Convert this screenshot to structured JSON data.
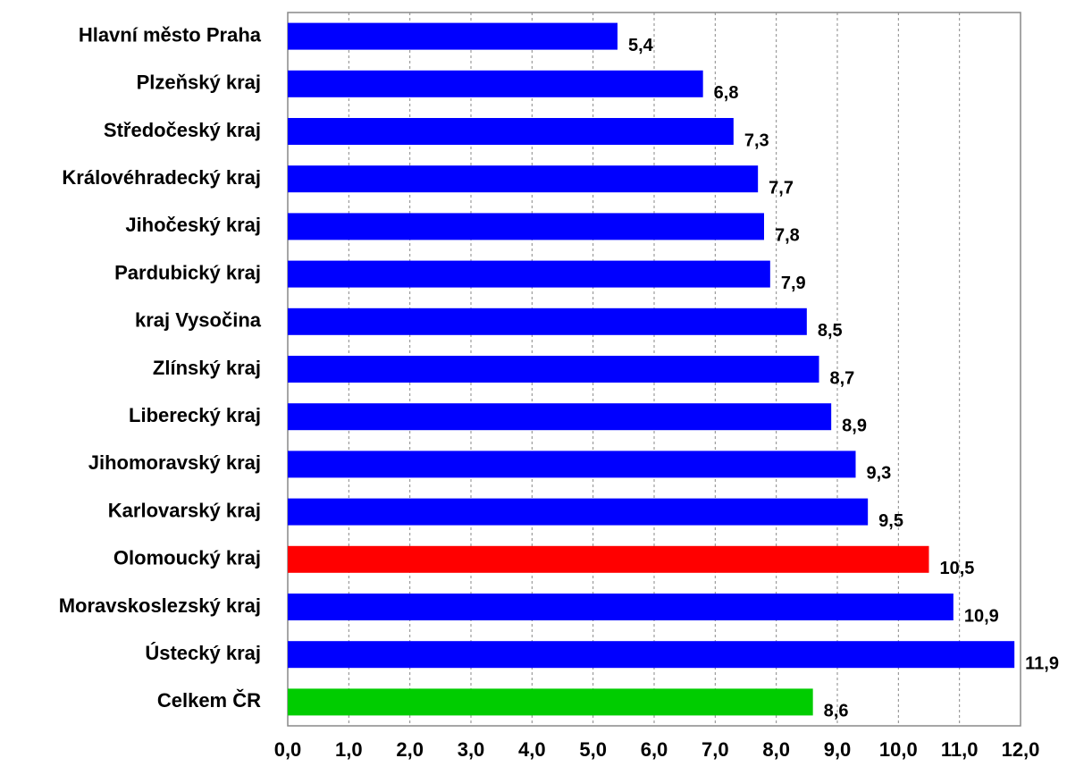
{
  "chart_data": {
    "type": "barh",
    "categories": [
      "Hlavní město Praha",
      "Plzeňský kraj",
      "Středočeský kraj",
      "Královéhradecký kraj",
      "Jihočeský kraj",
      "Pardubický kraj",
      "kraj Vysočina",
      "Zlínský kraj",
      "Liberecký kraj",
      "Jihomoravský kraj",
      "Karlovarský kraj",
      "Olomoucký kraj",
      "Moravskoslezský kraj",
      "Ústecký kraj",
      "Celkem ČR"
    ],
    "values": [
      5.4,
      6.8,
      7.3,
      7.7,
      7.8,
      7.9,
      8.5,
      8.7,
      8.9,
      9.3,
      9.5,
      10.5,
      10.9,
      11.9,
      8.6
    ],
    "value_labels": [
      "5,4",
      "6,8",
      "7,3",
      "7,7",
      "7,8",
      "7,9",
      "8,5",
      "8,7",
      "8,9",
      "9,3",
      "9,5",
      "10,5",
      "10,9",
      "11,9",
      "8,6"
    ],
    "colors": [
      "#0000ff",
      "#0000ff",
      "#0000ff",
      "#0000ff",
      "#0000ff",
      "#0000ff",
      "#0000ff",
      "#0000ff",
      "#0000ff",
      "#0000ff",
      "#0000ff",
      "#ff0000",
      "#0000ff",
      "#0000ff",
      "#00cc00"
    ],
    "xlim": [
      0,
      12
    ],
    "xticks": [
      {
        "value": 0,
        "label": "0,0"
      },
      {
        "value": 1,
        "label": "1,0"
      },
      {
        "value": 2,
        "label": "2,0"
      },
      {
        "value": 3,
        "label": "3,0"
      },
      {
        "value": 4,
        "label": "4,0"
      },
      {
        "value": 5,
        "label": "5,0"
      },
      {
        "value": 6,
        "label": "6,0"
      },
      {
        "value": 7,
        "label": "7,0"
      },
      {
        "value": 8,
        "label": "8,0"
      },
      {
        "value": 9,
        "label": "9,0"
      },
      {
        "value": 10,
        "label": "10,0"
      },
      {
        "value": 11,
        "label": "11,0"
      },
      {
        "value": 12,
        "label": "12,0"
      }
    ],
    "grid": true
  }
}
